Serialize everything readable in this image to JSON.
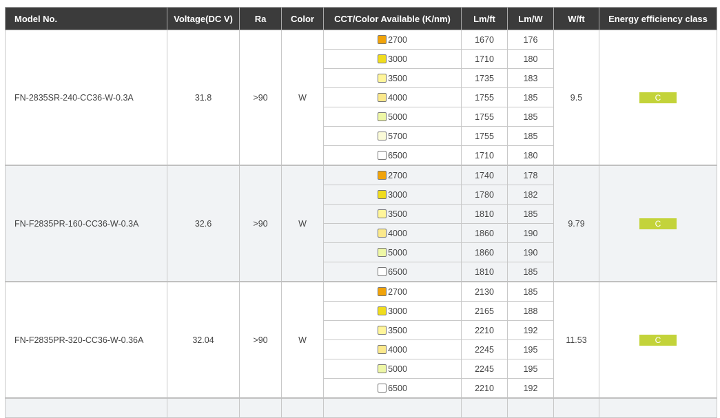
{
  "headers": [
    "Model No.",
    "Voltage(DC V)",
    "Ra",
    "Color",
    "CCT/Color Available (K/nm)",
    "Lm/ft",
    "Lm/W",
    "W/ft",
    "Energy efficiency class"
  ],
  "badge_color": "#c3d33a",
  "swatch_colors": {
    "2700": "#f0a30a",
    "3000": "#f0dc1e",
    "3500": "#fff59a",
    "4000": "#fbe98c",
    "5000": "#eef7a6",
    "5700": "#fbfbd8",
    "6500": "#ffffff"
  },
  "groups": [
    {
      "model": "FN-2835SR-240-CC36-W-0.3A",
      "voltage": "31.8",
      "ra": ">90",
      "color": "W",
      "wft": "9.5",
      "energy_class": "C",
      "rows": [
        {
          "cct": "2700",
          "lmft": "1670",
          "lmw": "176"
        },
        {
          "cct": "3000",
          "lmft": "1710",
          "lmw": "180"
        },
        {
          "cct": "3500",
          "lmft": "1735",
          "lmw": "183"
        },
        {
          "cct": "4000",
          "lmft": "1755",
          "lmw": "185"
        },
        {
          "cct": "5000",
          "lmft": "1755",
          "lmw": "185"
        },
        {
          "cct": "5700",
          "lmft": "1755",
          "lmw": "185"
        },
        {
          "cct": "6500",
          "lmft": "1710",
          "lmw": "180"
        }
      ]
    },
    {
      "model": "FN-F2835PR-160-CC36-W-0.3A",
      "voltage": "32.6",
      "ra": ">90",
      "color": "W",
      "wft": "9.79",
      "energy_class": "C",
      "rows": [
        {
          "cct": "2700",
          "lmft": "1740",
          "lmw": "178"
        },
        {
          "cct": "3000",
          "lmft": "1780",
          "lmw": "182"
        },
        {
          "cct": "3500",
          "lmft": "1810",
          "lmw": "185"
        },
        {
          "cct": "4000",
          "lmft": "1860",
          "lmw": "190"
        },
        {
          "cct": "5000",
          "lmft": "1860",
          "lmw": "190"
        },
        {
          "cct": "6500",
          "lmft": "1810",
          "lmw": "185"
        }
      ]
    },
    {
      "model": "FN-F2835PR-320-CC36-W-0.36A",
      "voltage": "32.04",
      "ra": ">90",
      "color": "W",
      "wft": "11.53",
      "energy_class": "C",
      "rows": [
        {
          "cct": "2700",
          "lmft": "2130",
          "lmw": "185"
        },
        {
          "cct": "3000",
          "lmft": "2165",
          "lmw": "188"
        },
        {
          "cct": "3500",
          "lmft": "2210",
          "lmw": "192"
        },
        {
          "cct": "4000",
          "lmft": "2245",
          "lmw": "195"
        },
        {
          "cct": "5000",
          "lmft": "2245",
          "lmw": "195"
        },
        {
          "cct": "6500",
          "lmft": "2210",
          "lmw": "192"
        }
      ]
    }
  ]
}
